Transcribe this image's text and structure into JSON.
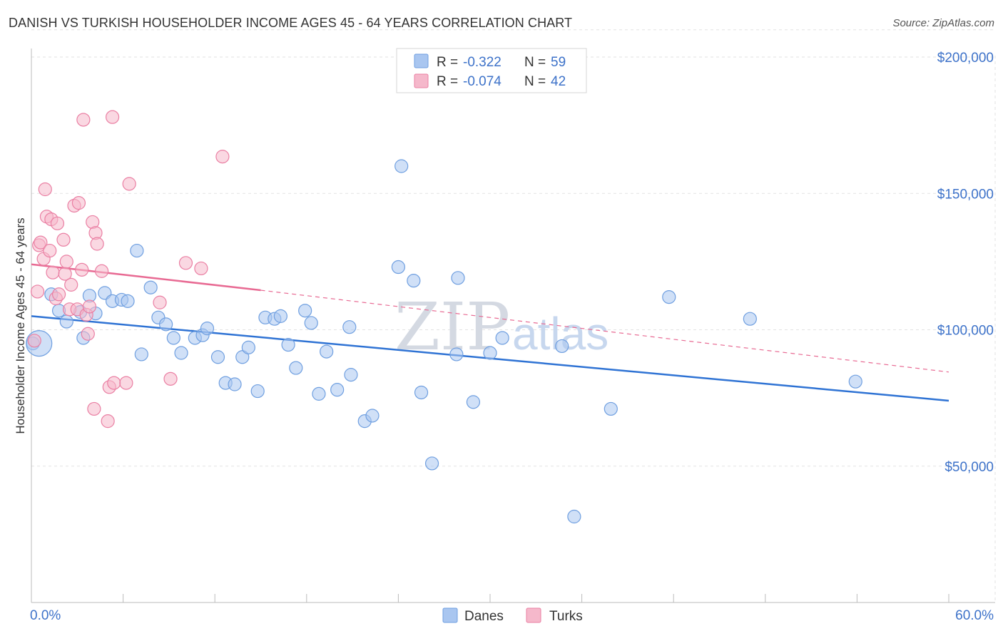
{
  "title": "DANISH VS TURKISH HOUSEHOLDER INCOME AGES 45 - 64 YEARS CORRELATION CHART",
  "source": "Source: ZipAtlas.com",
  "watermark": {
    "zip": "ZIP",
    "atlas": "atlas"
  },
  "legend_top": [
    {
      "r_label": "R =",
      "r_value": "-0.322",
      "n_label": "N =",
      "n_value": "59",
      "color": "#a9c6f0"
    },
    {
      "r_label": "R =",
      "r_value": "-0.074",
      "n_label": "N =",
      "n_value": "42",
      "color": "#f5b8cb"
    }
  ],
  "legend_bottom": [
    {
      "label": "Danes",
      "color": "#a9c6f0"
    },
    {
      "label": "Turks",
      "color": "#f5b8cb"
    }
  ],
  "chart_data": {
    "type": "scatter",
    "title": "DANISH VS TURKISH HOUSEHOLDER INCOME AGES 45 - 64 YEARS CORRELATION CHART",
    "xlabel": "",
    "ylabel": "Householder Income Ages 45 - 64 years",
    "xlim": [
      0,
      60
    ],
    "ylim": [
      0,
      210000
    ],
    "x_tick_labels": [
      "0.0%",
      "60.0%"
    ],
    "y_ticks": [
      50000,
      100000,
      150000,
      200000
    ],
    "y_tick_labels": [
      "$50,000",
      "$100,000",
      "$150,000",
      "$200,000"
    ],
    "grid": true,
    "series": [
      {
        "name": "Danes",
        "color": "#6f9fe0",
        "fill": "#a9c6f0",
        "points": [
          [
            0.1,
            95000
          ],
          [
            1.3,
            113000
          ],
          [
            1.8,
            107000
          ],
          [
            2.3,
            103000
          ],
          [
            3.2,
            106500
          ],
          [
            3.4,
            97000
          ],
          [
            3.8,
            112500
          ],
          [
            4.2,
            106000
          ],
          [
            4.8,
            113500
          ],
          [
            5.3,
            110500
          ],
          [
            5.9,
            111000
          ],
          [
            6.3,
            110500
          ],
          [
            7.2,
            91000
          ],
          [
            6.9,
            129000
          ],
          [
            7.8,
            115500
          ],
          [
            8.3,
            104500
          ],
          [
            8.8,
            102000
          ],
          [
            9.3,
            97000
          ],
          [
            9.8,
            91500
          ],
          [
            10.7,
            97000
          ],
          [
            11.2,
            98000
          ],
          [
            11.5,
            100500
          ],
          [
            12.2,
            90000
          ],
          [
            12.7,
            80500
          ],
          [
            13.3,
            80000
          ],
          [
            13.8,
            90000
          ],
          [
            14.2,
            93500
          ],
          [
            14.8,
            77500
          ],
          [
            15.3,
            104500
          ],
          [
            15.9,
            104000
          ],
          [
            16.3,
            105000
          ],
          [
            16.8,
            94500
          ],
          [
            17.3,
            86000
          ],
          [
            17.9,
            107000
          ],
          [
            18.3,
            102500
          ],
          [
            18.8,
            76500
          ],
          [
            19.3,
            92000
          ],
          [
            20.0,
            78000
          ],
          [
            20.8,
            101000
          ],
          [
            20.9,
            83500
          ],
          [
            21.8,
            66500
          ],
          [
            22.3,
            68500
          ],
          [
            24.2,
            160000
          ],
          [
            24.0,
            123000
          ],
          [
            25.0,
            118000
          ],
          [
            25.5,
            77000
          ],
          [
            26.2,
            51000
          ],
          [
            27.8,
            91000
          ],
          [
            27.9,
            119000
          ],
          [
            28.9,
            73500
          ],
          [
            30.0,
            91500
          ],
          [
            30.8,
            97000
          ],
          [
            35.5,
            31500
          ],
          [
            34.7,
            94000
          ],
          [
            37.9,
            71000
          ],
          [
            41.7,
            112000
          ],
          [
            47.0,
            104000
          ],
          [
            53.9,
            81000
          ],
          [
            0.5,
            95000
          ]
        ],
        "trendline": {
          "x": [
            0,
            60
          ],
          "y": [
            105000,
            74000
          ],
          "style": "solid"
        }
      },
      {
        "name": "Turks",
        "color": "#ea7fa3",
        "fill": "#f5b8cb",
        "points": [
          [
            0.2,
            96000
          ],
          [
            0.4,
            114000
          ],
          [
            0.5,
            131000
          ],
          [
            0.6,
            132000
          ],
          [
            0.8,
            126000
          ],
          [
            0.9,
            151500
          ],
          [
            1.0,
            141500
          ],
          [
            1.2,
            129000
          ],
          [
            1.3,
            140500
          ],
          [
            1.4,
            121000
          ],
          [
            1.6,
            111500
          ],
          [
            1.7,
            139000
          ],
          [
            1.8,
            113000
          ],
          [
            2.1,
            133000
          ],
          [
            2.2,
            120500
          ],
          [
            2.3,
            125000
          ],
          [
            2.5,
            107500
          ],
          [
            2.6,
            116500
          ],
          [
            2.8,
            145500
          ],
          [
            3.0,
            107500
          ],
          [
            3.1,
            146500
          ],
          [
            3.3,
            122000
          ],
          [
            3.4,
            177000
          ],
          [
            3.6,
            105500
          ],
          [
            3.7,
            98500
          ],
          [
            3.8,
            108500
          ],
          [
            4.0,
            139500
          ],
          [
            4.1,
            71000
          ],
          [
            4.2,
            135500
          ],
          [
            4.3,
            131500
          ],
          [
            4.6,
            121500
          ],
          [
            5.0,
            66500
          ],
          [
            5.1,
            79000
          ],
          [
            5.3,
            178000
          ],
          [
            5.4,
            80500
          ],
          [
            6.2,
            80500
          ],
          [
            6.4,
            153500
          ],
          [
            8.4,
            110000
          ],
          [
            9.1,
            82000
          ],
          [
            10.1,
            124500
          ],
          [
            11.1,
            122500
          ],
          [
            12.5,
            163500
          ]
        ],
        "trendline": {
          "x": [
            0,
            15
          ],
          "y": [
            124000,
            114500
          ],
          "style": "solid",
          "extension": {
            "x": [
              15,
              60
            ],
            "y": [
              114500,
              84500
            ],
            "style": "dashed"
          }
        }
      }
    ]
  }
}
